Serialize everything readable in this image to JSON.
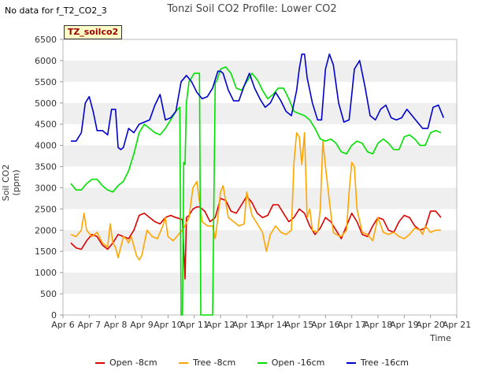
{
  "header": {
    "no_data_text": "No data for f_T2_CO2_3",
    "site_tag": "TZ_soilco2"
  },
  "colors": {
    "open_8": "#dd0000",
    "tree_8": "#ffa500",
    "open_16": "#00e000",
    "tree_16": "#0000cc",
    "band": "#efefef",
    "axis": "#bbbbbb"
  },
  "chart_data": {
    "type": "line",
    "title": "Tonzi Soil CO2 Profile: Lower CO2",
    "xlabel": "Time",
    "ylabel": "Soil CO2 (ppm)",
    "xlim": [
      6,
      21
    ],
    "ylim": [
      0,
      6500
    ],
    "xticks": [
      6,
      7,
      8,
      9,
      10,
      11,
      12,
      13,
      14,
      15,
      16,
      17,
      18,
      19,
      20,
      21
    ],
    "xtick_labels": [
      "Apr 6",
      "Apr 7",
      "Apr 8",
      "Apr 9",
      "Apr 10",
      "Apr 11",
      "Apr 12",
      "Apr 13",
      "Apr 14",
      "Apr 15",
      "Apr 16",
      "Apr 17",
      "Apr 18",
      "Apr 19",
      "Apr 20",
      "Apr 21"
    ],
    "yticks": [
      0,
      500,
      1000,
      1500,
      2000,
      2500,
      3000,
      3500,
      4000,
      4500,
      5000,
      5500,
      6000,
      6500
    ],
    "legend_position": "bottom",
    "series": [
      {
        "name": "Open -8cm",
        "color_key": "open_8",
        "x": [
          6.3,
          6.5,
          6.7,
          6.9,
          7.1,
          7.3,
          7.5,
          7.7,
          7.9,
          8.1,
          8.3,
          8.5,
          8.7,
          8.9,
          9.1,
          9.3,
          9.5,
          9.7,
          9.9,
          10.1,
          10.3,
          10.55,
          10.6,
          10.65,
          10.7,
          10.8,
          10.95,
          11.1,
          11.2,
          11.4,
          11.6,
          11.8,
          12.0,
          12.2,
          12.4,
          12.6,
          12.8,
          13.0,
          13.2,
          13.4,
          13.6,
          13.8,
          14.0,
          14.2,
          14.4,
          14.6,
          14.8,
          15.0,
          15.2,
          15.4,
          15.6,
          15.8,
          16.0,
          16.2,
          16.4,
          16.6,
          16.8,
          17.0,
          17.2,
          17.4,
          17.6,
          17.8,
          18.0,
          18.2,
          18.4,
          18.6,
          18.8,
          19.0,
          19.2,
          19.4,
          19.6,
          19.8,
          20.0,
          20.2,
          20.4
        ],
        "y": [
          1700,
          1580,
          1550,
          1750,
          1900,
          1850,
          1650,
          1550,
          1700,
          1900,
          1850,
          1800,
          2000,
          2350,
          2400,
          2300,
          2200,
          2150,
          2300,
          2350,
          2300,
          2250,
          1550,
          850,
          2300,
          2350,
          2500,
          2550,
          2550,
          2450,
          2200,
          2300,
          2750,
          2700,
          2450,
          2400,
          2600,
          2800,
          2650,
          2400,
          2300,
          2350,
          2600,
          2600,
          2400,
          2200,
          2300,
          2500,
          2400,
          2100,
          1900,
          2050,
          2300,
          2200,
          2000,
          1800,
          2100,
          2400,
          2200,
          1900,
          1850,
          2100,
          2300,
          2250,
          2000,
          1950,
          2200,
          2350,
          2300,
          2100,
          2000,
          2050,
          2450,
          2450,
          2300
        ]
      },
      {
        "name": "Tree -8cm",
        "color_key": "tree_8",
        "x": [
          6.3,
          6.5,
          6.7,
          6.8,
          6.9,
          7.1,
          7.3,
          7.5,
          7.7,
          7.8,
          7.9,
          8.0,
          8.1,
          8.3,
          8.4,
          8.5,
          8.6,
          8.8,
          8.9,
          9.0,
          9.2,
          9.4,
          9.6,
          9.8,
          9.9,
          10.0,
          10.2,
          10.4,
          10.6,
          10.8,
          10.95,
          11.1,
          11.3,
          11.5,
          11.7,
          11.8,
          11.9,
          12.0,
          12.1,
          12.3,
          12.5,
          12.7,
          12.9,
          13.0,
          13.2,
          13.4,
          13.6,
          13.75,
          13.9,
          14.1,
          14.3,
          14.5,
          14.7,
          14.8,
          14.9,
          15.0,
          15.1,
          15.2,
          15.3,
          15.4,
          15.5,
          15.7,
          15.8,
          15.9,
          16.0,
          16.2,
          16.3,
          16.4,
          16.6,
          16.8,
          16.9,
          17.0,
          17.1,
          17.2,
          17.4,
          17.6,
          17.8,
          18.0,
          18.2,
          18.4,
          18.6,
          18.8,
          19.0,
          19.2,
          19.4,
          19.6,
          19.7,
          19.8,
          20.0,
          20.2,
          20.4
        ],
        "y": [
          1900,
          1850,
          2000,
          2400,
          2000,
          1850,
          1950,
          1700,
          1600,
          2150,
          1700,
          1600,
          1350,
          1850,
          1800,
          1700,
          1850,
          1400,
          1300,
          1400,
          2000,
          1850,
          1800,
          2100,
          2300,
          1850,
          1750,
          1900,
          2050,
          2300,
          3000,
          3150,
          2200,
          2100,
          2100,
          1800,
          2300,
          2900,
          3050,
          2300,
          2200,
          2100,
          2150,
          2900,
          2350,
          2150,
          1950,
          1500,
          1900,
          2100,
          1950,
          1900,
          2000,
          3600,
          4300,
          4200,
          3550,
          4300,
          2300,
          2500,
          2000,
          1950,
          2500,
          4100,
          3500,
          2400,
          1950,
          1900,
          1850,
          2000,
          2900,
          3600,
          3500,
          2500,
          1950,
          1900,
          1750,
          2300,
          1950,
          1900,
          1950,
          1850,
          1800,
          1900,
          2050,
          2000,
          1900,
          2100,
          1950,
          2000,
          2000
        ]
      },
      {
        "name": "Open -16cm",
        "color_key": "open_16",
        "x": [
          6.3,
          6.5,
          6.7,
          6.9,
          7.1,
          7.3,
          7.5,
          7.7,
          7.9,
          8.1,
          8.3,
          8.5,
          8.7,
          8.9,
          9.1,
          9.3,
          9.5,
          9.7,
          9.9,
          10.1,
          10.3,
          10.45,
          10.5,
          10.55,
          10.6,
          10.65,
          10.7,
          10.8,
          11.0,
          11.1,
          11.2,
          11.25,
          11.3,
          11.4,
          11.6,
          11.7,
          11.8,
          11.85,
          12.0,
          12.2,
          12.4,
          12.6,
          12.8,
          13.0,
          13.2,
          13.4,
          13.6,
          13.8,
          14.0,
          14.2,
          14.4,
          14.6,
          14.8,
          15.0,
          15.2,
          15.4,
          15.6,
          15.8,
          16.0,
          16.2,
          16.4,
          16.6,
          16.8,
          17.0,
          17.2,
          17.4,
          17.6,
          17.8,
          18.0,
          18.2,
          18.4,
          18.6,
          18.8,
          19.0,
          19.2,
          19.4,
          19.6,
          19.8,
          20.0,
          20.2,
          20.4
        ],
        "y": [
          3100,
          2950,
          2950,
          3100,
          3200,
          3200,
          3050,
          2950,
          2900,
          3050,
          3150,
          3400,
          3800,
          4300,
          4500,
          4400,
          4300,
          4250,
          4400,
          4600,
          4800,
          4900,
          0,
          0,
          3600,
          3550,
          5000,
          5500,
          5700,
          5700,
          5700,
          0,
          0,
          0,
          0,
          0,
          5500,
          5500,
          5800,
          5850,
          5700,
          5350,
          5300,
          5500,
          5700,
          5550,
          5300,
          5100,
          5200,
          5350,
          5350,
          5100,
          4800,
          4750,
          4700,
          4600,
          4400,
          4150,
          4100,
          4150,
          4050,
          3850,
          3800,
          4000,
          4100,
          4050,
          3850,
          3800,
          4050,
          4150,
          4050,
          3900,
          3900,
          4200,
          4250,
          4150,
          4000,
          4000,
          4300,
          4350,
          4300
        ]
      },
      {
        "name": "Tree -16cm",
        "color_key": "tree_16",
        "x": [
          6.3,
          6.5,
          6.7,
          6.85,
          7.0,
          7.15,
          7.3,
          7.5,
          7.7,
          7.85,
          8.0,
          8.1,
          8.2,
          8.3,
          8.5,
          8.7,
          8.9,
          9.1,
          9.3,
          9.5,
          9.7,
          9.9,
          10.1,
          10.3,
          10.5,
          10.7,
          10.9,
          11.1,
          11.3,
          11.5,
          11.7,
          11.9,
          12.0,
          12.1,
          12.3,
          12.5,
          12.7,
          12.9,
          13.1,
          13.3,
          13.5,
          13.7,
          13.9,
          14.1,
          14.3,
          14.5,
          14.7,
          14.9,
          15.0,
          15.1,
          15.2,
          15.3,
          15.5,
          15.7,
          15.85,
          16.0,
          16.15,
          16.3,
          16.5,
          16.7,
          16.9,
          17.0,
          17.1,
          17.3,
          17.5,
          17.7,
          17.9,
          18.1,
          18.3,
          18.5,
          18.7,
          18.9,
          19.1,
          19.3,
          19.5,
          19.7,
          19.9,
          20.1,
          20.3,
          20.5
        ],
        "y": [
          4100,
          4100,
          4300,
          5000,
          5150,
          4800,
          4350,
          4350,
          4250,
          4850,
          4850,
          3950,
          3900,
          3950,
          4400,
          4300,
          4500,
          4550,
          4600,
          4950,
          5200,
          4600,
          4650,
          4800,
          5500,
          5650,
          5500,
          5250,
          5100,
          5150,
          5350,
          5750,
          5750,
          5700,
          5300,
          5050,
          5050,
          5400,
          5700,
          5350,
          5100,
          4900,
          5000,
          5250,
          5050,
          4800,
          4700,
          5300,
          5800,
          6150,
          6150,
          5600,
          5000,
          4600,
          4600,
          5800,
          6150,
          5900,
          5000,
          4550,
          4600,
          5200,
          5800,
          6000,
          5400,
          4700,
          4600,
          4850,
          4950,
          4650,
          4600,
          4650,
          4850,
          4700,
          4550,
          4400,
          4400,
          4900,
          4950,
          4650
        ]
      }
    ]
  }
}
